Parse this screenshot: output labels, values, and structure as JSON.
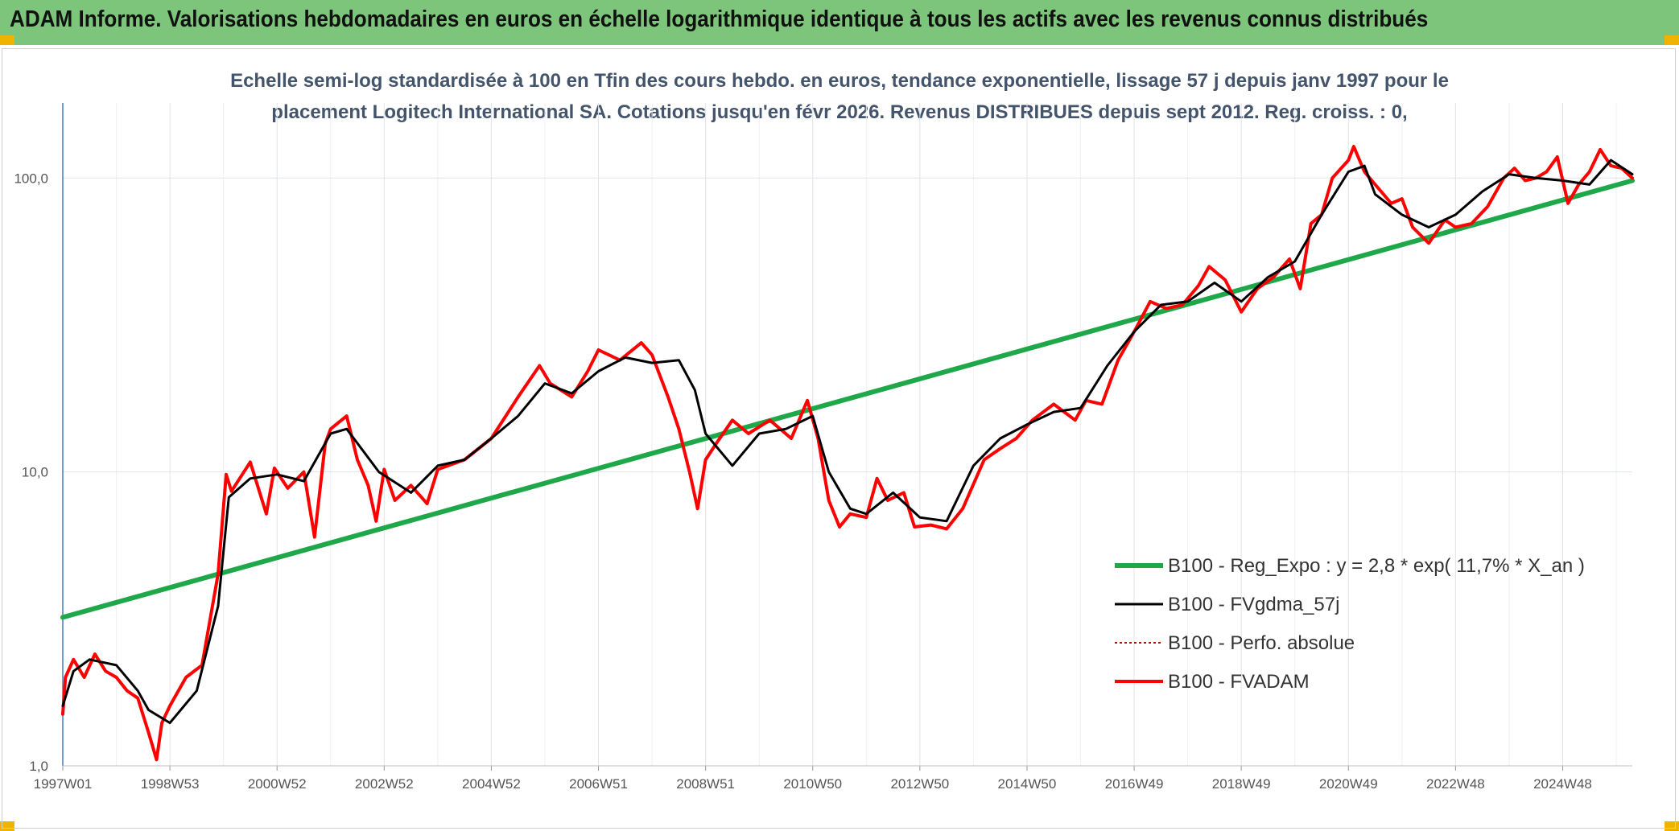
{
  "banner": {
    "title": "ADAM Informe. Valorisations hebdomadaires en euros en échelle logarithmique identique à tous les actifs avec les revenus connus distribués"
  },
  "colors": {
    "banner_bg": "#7dc57a",
    "accent": "#f0b400",
    "trend": "#1fa84a",
    "smooth": "#000000",
    "fvadam": "#ff0000",
    "perfo": "#cc0000"
  },
  "chart_data": {
    "type": "line",
    "title_lines": [
      "Echelle semi-log standardisée à 100 en Tfin des cours hebdo. en euros, tendance exponentielle, lissage 57 j depuis janv 1997 pour le",
      "placement Logitech International SA. Cotations jusqu'en févr 2026. Revenus DISTRIBUES depuis sept 2012. Reg. croiss. : 0,"
    ],
    "y_scale": "log",
    "ylim": [
      1,
      180
    ],
    "y_ticks": [
      1,
      10,
      100
    ],
    "y_tick_labels": [
      "1,0",
      "10,0",
      "100,0"
    ],
    "xlim": [
      1997.0,
      2026.3
    ],
    "x_ticks": [
      1997.0,
      1999.0,
      2001.0,
      2003.0,
      2005.0,
      2007.0,
      2009.0,
      2011.0,
      2013.0,
      2015.0,
      2017.0,
      2019.0,
      2021.0,
      2023.0,
      2025.0
    ],
    "x_tick_labels": [
      "1997W01",
      "1998W53",
      "2000W52",
      "2002W52",
      "2004W52",
      "2006W51",
      "2008W51",
      "2010W50",
      "2012W50",
      "2014W50",
      "2016W49",
      "2018W49",
      "2020W49",
      "2022W48",
      "2024W48"
    ],
    "grid": true,
    "legend_position": "bottom-right",
    "series": [
      {
        "name": "B100 - Reg_Expo : y = 2,8 * exp( 11,7% *  X_an )",
        "color": "#1fa84a",
        "x": [
          1997.0,
          2026.3
        ],
        "y": [
          3.2,
          98
        ]
      },
      {
        "name": "B100 - FVgdma_57j",
        "color": "#000000",
        "x": [
          1997.0,
          1997.2,
          1997.5,
          1998.0,
          1998.4,
          1998.6,
          1999.0,
          1999.5,
          1999.9,
          2000.1,
          2000.5,
          2001.0,
          2001.5,
          2002.0,
          2002.3,
          2002.9,
          2003.5,
          2004.0,
          2004.5,
          2005.0,
          2005.5,
          2006.0,
          2006.5,
          2007.0,
          2007.5,
          2008.0,
          2008.5,
          2008.8,
          2009.0,
          2009.5,
          2010.0,
          2010.5,
          2011.0,
          2011.3,
          2011.7,
          2012.0,
          2012.5,
          2013.0,
          2013.5,
          2014.0,
          2014.5,
          2015.0,
          2015.5,
          2016.0,
          2016.5,
          2017.0,
          2017.5,
          2018.0,
          2018.5,
          2019.0,
          2019.5,
          2020.0,
          2020.5,
          2021.0,
          2021.3,
          2021.5,
          2022.0,
          2022.5,
          2023.0,
          2023.5,
          2024.0,
          2024.5,
          2025.0,
          2025.5,
          2025.9,
          2026.3
        ],
        "y": [
          1.6,
          2.1,
          2.3,
          2.2,
          1.8,
          1.55,
          1.4,
          1.8,
          3.5,
          8.2,
          9.5,
          9.8,
          9.3,
          13.5,
          14.0,
          10.0,
          8.5,
          10.5,
          11.0,
          13.0,
          15.5,
          20.0,
          18.5,
          22.0,
          24.5,
          23.5,
          24.0,
          19.0,
          13.5,
          10.5,
          13.5,
          14.0,
          15.5,
          10.0,
          7.5,
          7.2,
          8.5,
          7.0,
          6.8,
          10.5,
          13.0,
          14.5,
          16.0,
          16.5,
          23.0,
          30.0,
          37.0,
          38.0,
          44.0,
          38.0,
          46.0,
          52.0,
          75.0,
          105.0,
          110.0,
          88.0,
          75.0,
          68.0,
          75.0,
          90.0,
          103.0,
          100.0,
          98.0,
          95.0,
          115.0,
          103.0
        ]
      },
      {
        "name": "B100 - Perfo. absolue",
        "color": "#cc0000",
        "x": [],
        "y": []
      },
      {
        "name": "B100 - FVADAM",
        "color": "#ff0000",
        "x": [
          1997.0,
          1997.05,
          1997.2,
          1997.4,
          1997.6,
          1997.8,
          1998.0,
          1998.2,
          1998.4,
          1998.6,
          1998.75,
          1998.85,
          1999.0,
          1999.3,
          1999.6,
          1999.9,
          2000.05,
          2000.15,
          2000.5,
          2000.8,
          2000.95,
          2001.2,
          2001.5,
          2001.7,
          2001.9,
          2002.0,
          2002.3,
          2002.5,
          2002.7,
          2002.85,
          2003.0,
          2003.2,
          2003.5,
          2003.8,
          2004.0,
          2004.5,
          2005.0,
          2005.5,
          2005.9,
          2006.1,
          2006.5,
          2006.8,
          2007.0,
          2007.4,
          2007.8,
          2008.0,
          2008.3,
          2008.5,
          2008.7,
          2008.85,
          2009.0,
          2009.2,
          2009.5,
          2009.8,
          2010.2,
          2010.6,
          2010.9,
          2011.1,
          2011.3,
          2011.5,
          2011.7,
          2012.0,
          2012.2,
          2012.4,
          2012.7,
          2012.9,
          2013.2,
          2013.5,
          2013.8,
          2014.2,
          2014.5,
          2014.8,
          2015.1,
          2015.5,
          2015.9,
          2016.1,
          2016.4,
          2016.7,
          2017.0,
          2017.3,
          2017.6,
          2017.9,
          2018.2,
          2018.4,
          2018.7,
          2019.0,
          2019.3,
          2019.6,
          2019.9,
          2020.1,
          2020.3,
          2020.5,
          2020.7,
          2021.0,
          2021.1,
          2021.3,
          2021.5,
          2021.8,
          2022.0,
          2022.2,
          2022.5,
          2022.8,
          2023.0,
          2023.3,
          2023.6,
          2023.9,
          2024.1,
          2024.3,
          2024.5,
          2024.7,
          2024.9,
          2025.1,
          2025.3,
          2025.5,
          2025.7,
          2025.9,
          2026.1,
          2026.3
        ],
        "y": [
          1.5,
          2.0,
          2.3,
          2.0,
          2.4,
          2.1,
          2.0,
          1.8,
          1.7,
          1.3,
          1.05,
          1.4,
          1.6,
          2.0,
          2.2,
          4.5,
          9.8,
          8.6,
          10.8,
          7.2,
          10.3,
          8.8,
          10.0,
          6.0,
          12.5,
          14.0,
          15.5,
          11.0,
          9.0,
          6.8,
          10.2,
          8.0,
          9.0,
          7.8,
          10.2,
          11.0,
          13.0,
          18.0,
          23.0,
          20.0,
          18.0,
          22.0,
          26.0,
          24.0,
          27.5,
          25.0,
          18.0,
          14.0,
          10.0,
          7.5,
          11.0,
          12.5,
          15.0,
          13.5,
          15.0,
          13.0,
          17.5,
          13.0,
          8.0,
          6.5,
          7.2,
          7.0,
          9.5,
          8.0,
          8.5,
          6.5,
          6.6,
          6.4,
          7.5,
          11.0,
          12.0,
          13.0,
          15.0,
          17.0,
          15.0,
          17.5,
          17.0,
          24.0,
          30.0,
          38.0,
          36.0,
          37.0,
          43.0,
          50.0,
          45.0,
          35.0,
          42.0,
          46.0,
          53.0,
          42.0,
          70.0,
          75.0,
          100.0,
          115.0,
          128.0,
          105.0,
          95.0,
          82.0,
          85.0,
          68.0,
          60.0,
          72.0,
          68.0,
          70.0,
          80.0,
          100.0,
          108.0,
          98.0,
          100.0,
          105.0,
          118.0,
          82.0,
          95.0,
          105.0,
          125.0,
          110.0,
          108.0,
          100.0
        ]
      }
    ]
  }
}
